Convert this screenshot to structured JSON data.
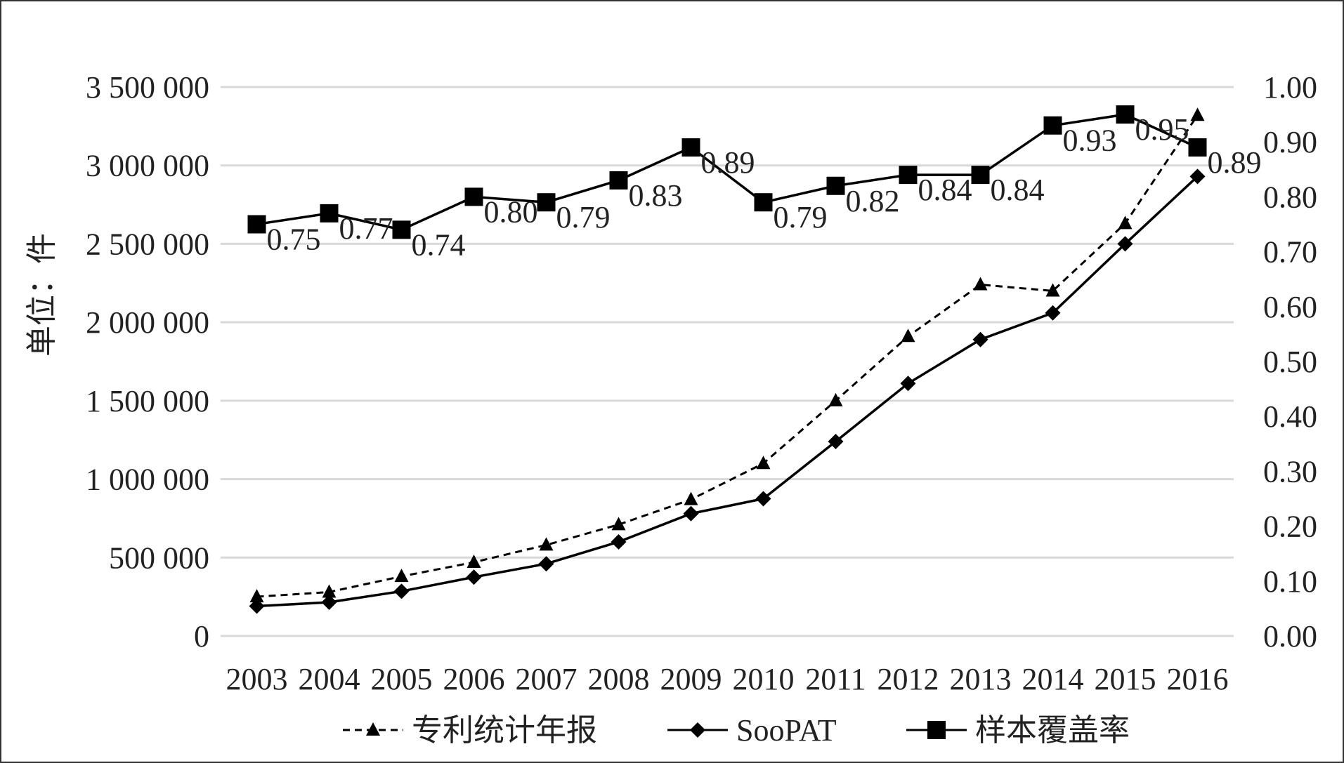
{
  "chart_data": {
    "type": "line",
    "categories": [
      "2003",
      "2004",
      "2005",
      "2006",
      "2007",
      "2008",
      "2009",
      "2010",
      "2011",
      "2012",
      "2013",
      "2014",
      "2015",
      "2016"
    ],
    "ylabel": "单位：件",
    "ylim": [
      0,
      3500000
    ],
    "y_ticks": [
      "0",
      "500 000",
      "1 000 000",
      "1 500 000",
      "2 000 000",
      "2 500 000",
      "3 000 000",
      "3 500 000"
    ],
    "y2lim": [
      0,
      1.0
    ],
    "y2_ticks": [
      "0.00",
      "0.10",
      "0.20",
      "0.30",
      "0.40",
      "0.50",
      "0.60",
      "0.70",
      "0.80",
      "0.90",
      "1.00"
    ],
    "grid": true,
    "legend_position": "bottom",
    "series": [
      {
        "name": "专利统计年报",
        "axis": "left",
        "style": "dashed",
        "marker": "triangle",
        "values": [
          250000,
          280000,
          380000,
          470000,
          580000,
          710000,
          870000,
          1100000,
          1500000,
          1910000,
          2240000,
          2200000,
          2630000,
          3320000
        ]
      },
      {
        "name": "SooPAT",
        "axis": "left",
        "style": "solid",
        "marker": "diamond",
        "values": [
          190000,
          215000,
          285000,
          375000,
          460000,
          600000,
          780000,
          875000,
          1240000,
          1610000,
          1890000,
          2060000,
          2500000,
          2930000
        ]
      },
      {
        "name": "样本覆盖率",
        "axis": "right",
        "style": "solid",
        "marker": "square",
        "values": [
          0.75,
          0.77,
          0.74,
          0.8,
          0.79,
          0.83,
          0.89,
          0.79,
          0.82,
          0.84,
          0.84,
          0.93,
          0.95,
          0.89
        ],
        "data_labels": [
          "0.75",
          "0.77",
          "0.74",
          "0.80",
          "0.79",
          "0.83",
          "0.89",
          "0.79",
          "0.82",
          "0.84",
          "0.84",
          "0.93",
          "0.95",
          "0.89"
        ]
      }
    ],
    "colors": {
      "line": "#000000",
      "grid": "#d9d9d9",
      "text": "#222222"
    }
  }
}
